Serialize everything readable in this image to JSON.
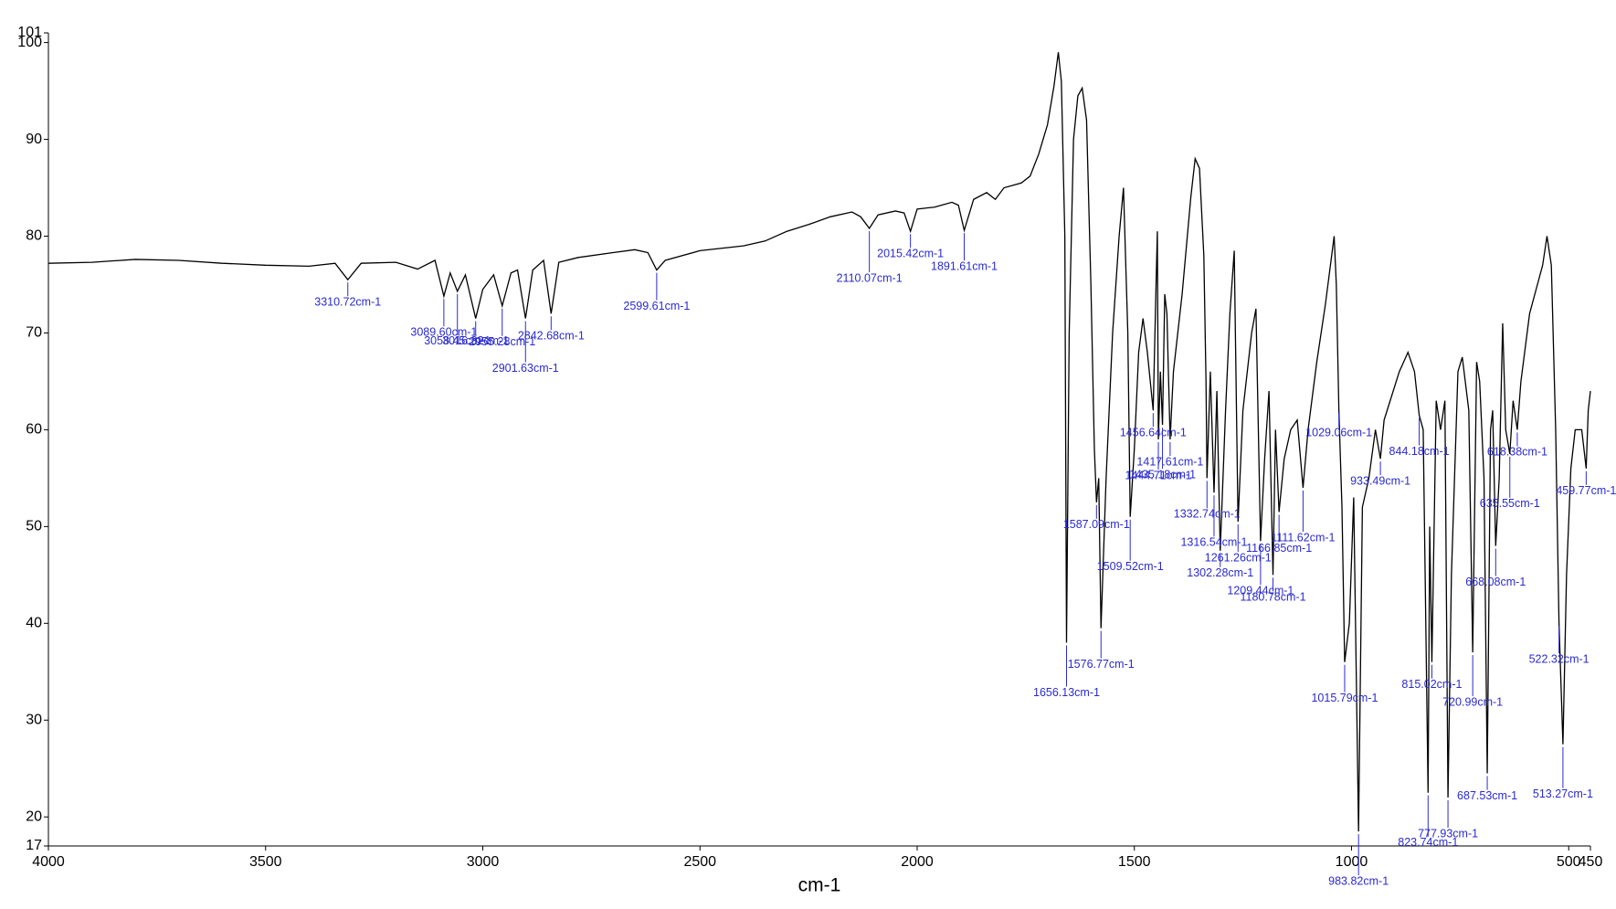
{
  "chart_data": {
    "type": "line",
    "x_label": "cm-1",
    "xlim": [
      4000,
      450
    ],
    "xticks": [
      4000,
      3500,
      3000,
      2500,
      2000,
      1500,
      1000,
      500,
      450
    ],
    "ylim": [
      17,
      101
    ],
    "yticks": [
      17,
      20,
      30,
      40,
      50,
      60,
      70,
      80,
      90,
      100,
      101
    ],
    "x": [
      4000,
      3900,
      3800,
      3700,
      3600,
      3500,
      3400,
      3340,
      3310.72,
      3280,
      3200,
      3150,
      3110,
      3089.6,
      3075,
      3058.45,
      3040,
      3016.32,
      3000,
      2975,
      2955.28,
      2935,
      2920,
      2901.63,
      2885,
      2860,
      2842.68,
      2825,
      2780,
      2700,
      2650,
      2620,
      2599.61,
      2580,
      2500,
      2400,
      2350,
      2300,
      2250,
      2200,
      2150,
      2130,
      2110.07,
      2090,
      2050,
      2030,
      2015.42,
      2000,
      1960,
      1920,
      1905,
      1891.61,
      1870,
      1840,
      1820,
      1800,
      1760,
      1740,
      1720,
      1700,
      1685,
      1675,
      1668,
      1660,
      1656.13,
      1650,
      1640,
      1630,
      1620,
      1610,
      1600,
      1592,
      1587.09,
      1582,
      1576.77,
      1565,
      1550,
      1535,
      1525,
      1515,
      1509.52,
      1500,
      1490,
      1480,
      1470,
      1456.64,
      1450,
      1447,
      1444.71,
      1440,
      1435.18,
      1430,
      1425,
      1417.61,
      1410,
      1390,
      1370,
      1360,
      1350,
      1340,
      1335,
      1332.74,
      1325,
      1316.54,
      1310,
      1302.28,
      1290,
      1280,
      1270,
      1261.26,
      1250,
      1230,
      1220,
      1209.44,
      1200,
      1190,
      1180.78,
      1175,
      1166.85,
      1155,
      1140,
      1125,
      1111.62,
      1100,
      1080,
      1060,
      1040,
      1035,
      1029.06,
      1022,
      1015.79,
      1005,
      995,
      983.82,
      975,
      960,
      945,
      933.49,
      925,
      890,
      870,
      855,
      844.18,
      835,
      823.74,
      820,
      815.02,
      805,
      795,
      785,
      777.93,
      770,
      755,
      745,
      730,
      720.99,
      712,
      705,
      695,
      687.53,
      680,
      675,
      668.08,
      660,
      652,
      645,
      635.55,
      628,
      618.38,
      610,
      590,
      560,
      550,
      540,
      530,
      522.32,
      513.27,
      505,
      495,
      485,
      470,
      459.77,
      455,
      450
    ],
    "series": [
      {
        "color": "#000000",
        "values": [
          77.2,
          77.3,
          77.6,
          77.5,
          77.2,
          77.0,
          76.9,
          77.2,
          75.5,
          77.2,
          77.3,
          76.6,
          77.5,
          73.8,
          76.2,
          74.3,
          76.0,
          71.5,
          74.5,
          76.0,
          72.8,
          76.2,
          76.5,
          71.5,
          76.5,
          77.5,
          72.0,
          77.3,
          77.8,
          78.3,
          78.6,
          78.3,
          76.5,
          77.5,
          78.5,
          79.0,
          79.5,
          80.5,
          81.2,
          82.0,
          82.5,
          82.0,
          80.8,
          82.2,
          82.6,
          82.4,
          80.5,
          82.8,
          83.0,
          83.5,
          83.2,
          80.6,
          83.8,
          84.5,
          83.8,
          85.0,
          85.5,
          86.2,
          88.5,
          91.5,
          95.5,
          99.0,
          96,
          80,
          38.0,
          70,
          90,
          94.5,
          95.3,
          92,
          75,
          58,
          52.5,
          55,
          39.5,
          55,
          70,
          80,
          85.0,
          70,
          51,
          58,
          68,
          71.5,
          68,
          62,
          75,
          80.5,
          59,
          66,
          60.5,
          74,
          72,
          59,
          66,
          74,
          84,
          88,
          87,
          78,
          65,
          55,
          66,
          53.5,
          64,
          47.5,
          62,
          72,
          78.5,
          50.5,
          62,
          70,
          72.5,
          48.5,
          57,
          64,
          45,
          60,
          51.5,
          57,
          60,
          61,
          54,
          60,
          67,
          73,
          80,
          75,
          62,
          52,
          36,
          40,
          53,
          18.5,
          52,
          55,
          60,
          57,
          61,
          66,
          68,
          66,
          61.5,
          60,
          22.5,
          50,
          36,
          63,
          60,
          63,
          22,
          45,
          66,
          67.5,
          62,
          37,
          67,
          65,
          55,
          24.5,
          60,
          62,
          48,
          55,
          71,
          60,
          57.5,
          63,
          60,
          65,
          72,
          77,
          80,
          77,
          60,
          40,
          27.5,
          45,
          56,
          60,
          60,
          56,
          62,
          64
        ]
      }
    ],
    "peaks": [
      {
        "label": "3310.72cm-1",
        "x": 3310.72,
        "y": 75.5
      },
      {
        "label": "3089.60cm-1",
        "x": 3089.6,
        "y": 73.8
      },
      {
        "label": "3058.45cm-1",
        "x": 3058.45,
        "y": 74.3
      },
      {
        "label": "3016.32cm-1",
        "x": 3016.32,
        "y": 71.5
      },
      {
        "label": "2955.28cm-1",
        "x": 2955.28,
        "y": 72.8
      },
      {
        "label": "2901.63cm-1",
        "x": 2901.63,
        "y": 71.5
      },
      {
        "label": "2842.68cm-1",
        "x": 2842.68,
        "y": 72.0
      },
      {
        "label": "2599.61cm-1",
        "x": 2599.61,
        "y": 76.5
      },
      {
        "label": "2110.07cm-1",
        "x": 2110.07,
        "y": 80.8
      },
      {
        "label": "2015.42cm-1",
        "x": 2015.42,
        "y": 80.5
      },
      {
        "label": "1891.61cm-1",
        "x": 1891.61,
        "y": 80.6
      },
      {
        "label": "1656.13cm-1",
        "x": 1656.13,
        "y": 38.0
      },
      {
        "label": "1587.09cm-1",
        "x": 1587.09,
        "y": 52.5
      },
      {
        "label": "1576.77cm-1",
        "x": 1576.77,
        "y": 39.5
      },
      {
        "label": "1509.52cm-1",
        "x": 1509.52,
        "y": 51
      },
      {
        "label": "1456.64cm-1",
        "x": 1456.64,
        "y": 62
      },
      {
        "label": "1444.71cm-1",
        "x": 1444.71,
        "y": 59
      },
      {
        "label": "1435.18cm-1",
        "x": 1435.18,
        "y": 60.5
      },
      {
        "label": "1417.61cm-1",
        "x": 1417.61,
        "y": 59
      },
      {
        "label": "1332.74cm-1",
        "x": 1332.74,
        "y": 55
      },
      {
        "label": "1316.54cm-1",
        "x": 1316.54,
        "y": 53.5
      },
      {
        "label": "1302.28cm-1",
        "x": 1302.28,
        "y": 47.5
      },
      {
        "label": "1261.26cm-1",
        "x": 1261.26,
        "y": 50.5
      },
      {
        "label": "1209.44cm-1",
        "x": 1209.44,
        "y": 48.5
      },
      {
        "label": "1180.78cm-1",
        "x": 1180.78,
        "y": 45
      },
      {
        "label": "1166.85cm-1",
        "x": 1166.85,
        "y": 51.5
      },
      {
        "label": "1111.62cm-1",
        "x": 1111.62,
        "y": 54
      },
      {
        "label": "1029.06cm-1",
        "x": 1029.06,
        "y": 62
      },
      {
        "label": "1015.79cm-1",
        "x": 1015.79,
        "y": 36
      },
      {
        "label": "983.82cm-1",
        "x": 983.82,
        "y": 18.5
      },
      {
        "label": "933.49cm-1",
        "x": 933.49,
        "y": 57
      },
      {
        "label": "844.18cm-1",
        "x": 844.18,
        "y": 61.5
      },
      {
        "label": "823.74cm-1",
        "x": 823.74,
        "y": 22.5
      },
      {
        "label": "815.02cm-1",
        "x": 815.02,
        "y": 36
      },
      {
        "label": "777.93cm-1",
        "x": 777.93,
        "y": 22
      },
      {
        "label": "720.99cm-1",
        "x": 720.99,
        "y": 37
      },
      {
        "label": "687.53cm-1",
        "x": 687.53,
        "y": 24.5
      },
      {
        "label": "668.08cm-1",
        "x": 668.08,
        "y": 48
      },
      {
        "label": "635.55cm-1",
        "x": 635.55,
        "y": 57.5
      },
      {
        "label": "618.38cm-1",
        "x": 618.38,
        "y": 60
      },
      {
        "label": "522.32cm-1",
        "x": 522.32,
        "y": 40
      },
      {
        "label": "513.27cm-1",
        "x": 513.27,
        "y": 27.5
      },
      {
        "label": "459.77cm-1",
        "x": 459.77,
        "y": 56
      }
    ]
  }
}
